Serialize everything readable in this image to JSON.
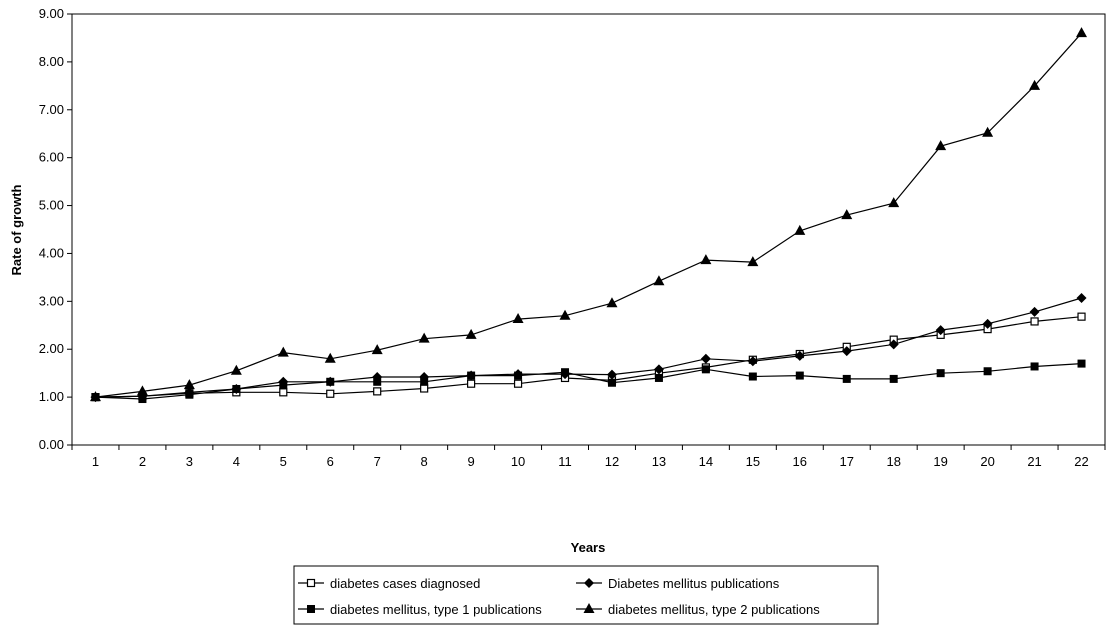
{
  "chart_data": {
    "type": "line",
    "title": "",
    "xlabel": "Years",
    "ylabel": "Rate of growth",
    "x": [
      1,
      2,
      3,
      4,
      5,
      6,
      7,
      8,
      9,
      10,
      11,
      12,
      13,
      14,
      15,
      16,
      17,
      18,
      19,
      20,
      21,
      22
    ],
    "ylim": [
      0,
      9
    ],
    "y_ticks": [
      "0.00",
      "1.00",
      "2.00",
      "3.00",
      "4.00",
      "5.00",
      "6.00",
      "7.00",
      "8.00",
      "9.00"
    ],
    "x_ticks": [
      "1",
      "2",
      "3",
      "4",
      "5",
      "6",
      "7",
      "8",
      "9",
      "10",
      "11",
      "12",
      "13",
      "14",
      "15",
      "16",
      "17",
      "18",
      "19",
      "20",
      "21",
      "22"
    ],
    "grid": false,
    "legend_position": "bottom",
    "series": [
      {
        "name": "diabetes cases diagnosed",
        "marker": "hollow-square",
        "color": "#000000",
        "values": [
          1.0,
          1.02,
          1.08,
          1.1,
          1.1,
          1.07,
          1.12,
          1.18,
          1.28,
          1.28,
          1.4,
          1.35,
          1.5,
          1.62,
          1.78,
          1.9,
          2.05,
          2.2,
          2.3,
          2.42,
          2.58,
          2.68
        ]
      },
      {
        "name": "Diabetes mellitus publications",
        "marker": "diamond",
        "color": "#000000",
        "values": [
          1.0,
          1.02,
          1.1,
          1.17,
          1.32,
          1.32,
          1.42,
          1.42,
          1.45,
          1.48,
          1.48,
          1.47,
          1.58,
          1.8,
          1.75,
          1.86,
          1.96,
          2.1,
          2.4,
          2.53,
          2.78,
          3.07
        ]
      },
      {
        "name": "diabetes mellitus, type 1 publications",
        "marker": "square",
        "color": "#000000",
        "values": [
          1.0,
          0.96,
          1.05,
          1.17,
          1.25,
          1.32,
          1.32,
          1.32,
          1.45,
          1.45,
          1.52,
          1.3,
          1.4,
          1.58,
          1.43,
          1.45,
          1.38,
          1.38,
          1.5,
          1.54,
          1.64,
          1.7
        ]
      },
      {
        "name": "diabetes mellitus, type 2 publications",
        "marker": "triangle",
        "color": "#000000",
        "values": [
          1.0,
          1.12,
          1.25,
          1.55,
          1.93,
          1.8,
          1.98,
          2.22,
          2.3,
          2.63,
          2.7,
          2.96,
          3.42,
          3.86,
          3.82,
          4.47,
          4.8,
          5.05,
          6.24,
          6.52,
          7.5,
          8.6
        ]
      }
    ]
  }
}
